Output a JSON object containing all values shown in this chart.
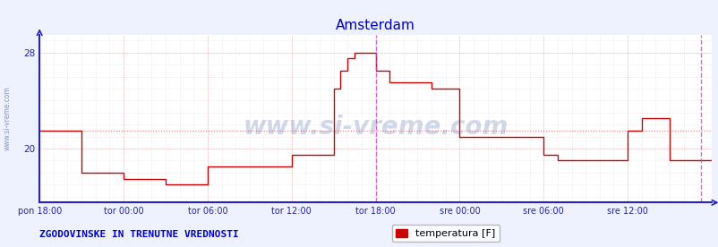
{
  "title": "Amsterdam",
  "title_color": "#0000cc",
  "title_fontsize": 11,
  "bg_color": "#eef2ff",
  "plot_bg_color": "#ffffff",
  "line_color": "#cc0000",
  "line_width": 1.0,
  "axis_color": "#2222cc",
  "tick_color": "#2222aa",
  "tick_fontsize": 7,
  "grid_color_red": "#ee4444",
  "grid_color_gray": "#bbbbcc",
  "grid_alpha_red": 0.55,
  "grid_alpha_gray": 0.6,
  "legend_label": "temperatura [F]",
  "legend_color": "#cc0000",
  "footer_text": "ZGODOVINSKE IN TRENUTNE VREDNOSTI",
  "footer_color": "#0000cc",
  "footer_fontsize": 8,
  "vline_color": "#cc44cc",
  "vline_alpha": 0.8,
  "avg_y": 21.5,
  "avg_line_color": "#cc0000",
  "avg_line_alpha": 0.5,
  "x_tick_labels": [
    "pon 18:00",
    "tor 00:00",
    "tor 06:00",
    "tor 12:00",
    "tor 18:00",
    "sre 00:00",
    "sre 06:00",
    "sre 12:00"
  ],
  "x_tick_positions": [
    0,
    72,
    144,
    216,
    288,
    360,
    432,
    504
  ],
  "xlim": [
    0,
    576
  ],
  "ylim": [
    15.5,
    29.5
  ],
  "ytick_positions": [
    20,
    28
  ],
  "ytick_labels": [
    "20",
    "28"
  ],
  "vline_x": 288,
  "right_vline_x": 567,
  "watermark": "www.si-vreme.com",
  "watermark_color": "#4466aa",
  "watermark_alpha": 0.25,
  "sidebar_text": "www.si-vreme.com",
  "sidebar_color": "#4466aa",
  "time_values": [
    0,
    36,
    36,
    72,
    72,
    108,
    108,
    144,
    144,
    180,
    180,
    216,
    216,
    252,
    252,
    258,
    258,
    264,
    264,
    270,
    270,
    276,
    276,
    288,
    288,
    300,
    300,
    336,
    336,
    360,
    360,
    372,
    372,
    432,
    432,
    444,
    444,
    480,
    480,
    504,
    504,
    516,
    516,
    540,
    540,
    576
  ],
  "temp_values": [
    21.5,
    21.5,
    18.0,
    18.0,
    17.5,
    17.5,
    17.0,
    17.0,
    18.5,
    18.5,
    18.5,
    18.5,
    19.5,
    19.5,
    25.0,
    25.0,
    26.5,
    26.5,
    27.5,
    27.5,
    28.0,
    28.0,
    28.0,
    28.0,
    26.5,
    26.5,
    25.5,
    25.5,
    25.0,
    25.0,
    21.0,
    21.0,
    21.0,
    21.0,
    19.5,
    19.5,
    19.0,
    19.0,
    19.0,
    19.0,
    21.5,
    21.5,
    22.5,
    22.5,
    19.0,
    19.0
  ]
}
